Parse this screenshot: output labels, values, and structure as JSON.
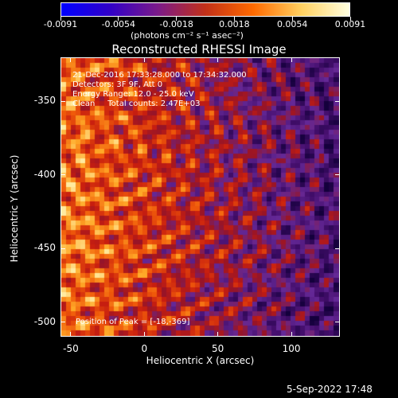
{
  "colorbar": {
    "tick_labels": [
      "-0.0091",
      "-0.0054",
      "-0.0018",
      "0.0018",
      "0.0054",
      "0.0091"
    ],
    "units_label": "(photons cm⁻² s⁻¹ asec⁻²)",
    "colors": [
      "#0000ff",
      "#3000c8",
      "#7a1a8a",
      "#c23018",
      "#ff6a00",
      "#ffd060",
      "#ffffe0"
    ]
  },
  "plot": {
    "title": "Reconstructed RHESSI Image",
    "xlabel": "Heliocentric X (arcsec)",
    "ylabel": "Heliocentric Y (arcsec)",
    "annotations": {
      "time_range": "21-Dec-2016 17:33:28.000 to 17:34:32.000",
      "detectors": "Detectors: 3F 9F, Att 0",
      "energy_range": "Energy Range: 12.0 - 25.0 keV",
      "clean_counts": "Clean     Total counts: 2.47E+03",
      "peak_position": "Position of Peak = [-18,-369]"
    }
  },
  "chart_data": {
    "type": "heatmap",
    "title": "Reconstructed RHESSI Image",
    "xlabel": "Heliocentric X (arcsec)",
    "ylabel": "Heliocentric Y (arcsec)",
    "xlim": [
      -57,
      133
    ],
    "ylim": [
      -510,
      -320
    ],
    "xticks": [
      -50,
      0,
      50,
      100
    ],
    "yticks": [
      -350,
      -400,
      -450,
      -500
    ],
    "x_tick_labels": [
      "-50",
      "0",
      "50",
      "100"
    ],
    "y_tick_labels": [
      "-350",
      "-400",
      "-450",
      "-500"
    ],
    "colorbar_range": [
      -0.0091,
      0.0091
    ],
    "peak": [
      -18,
      -369
    ]
  },
  "footer": {
    "timestamp": "5-Sep-2022 17:48"
  }
}
